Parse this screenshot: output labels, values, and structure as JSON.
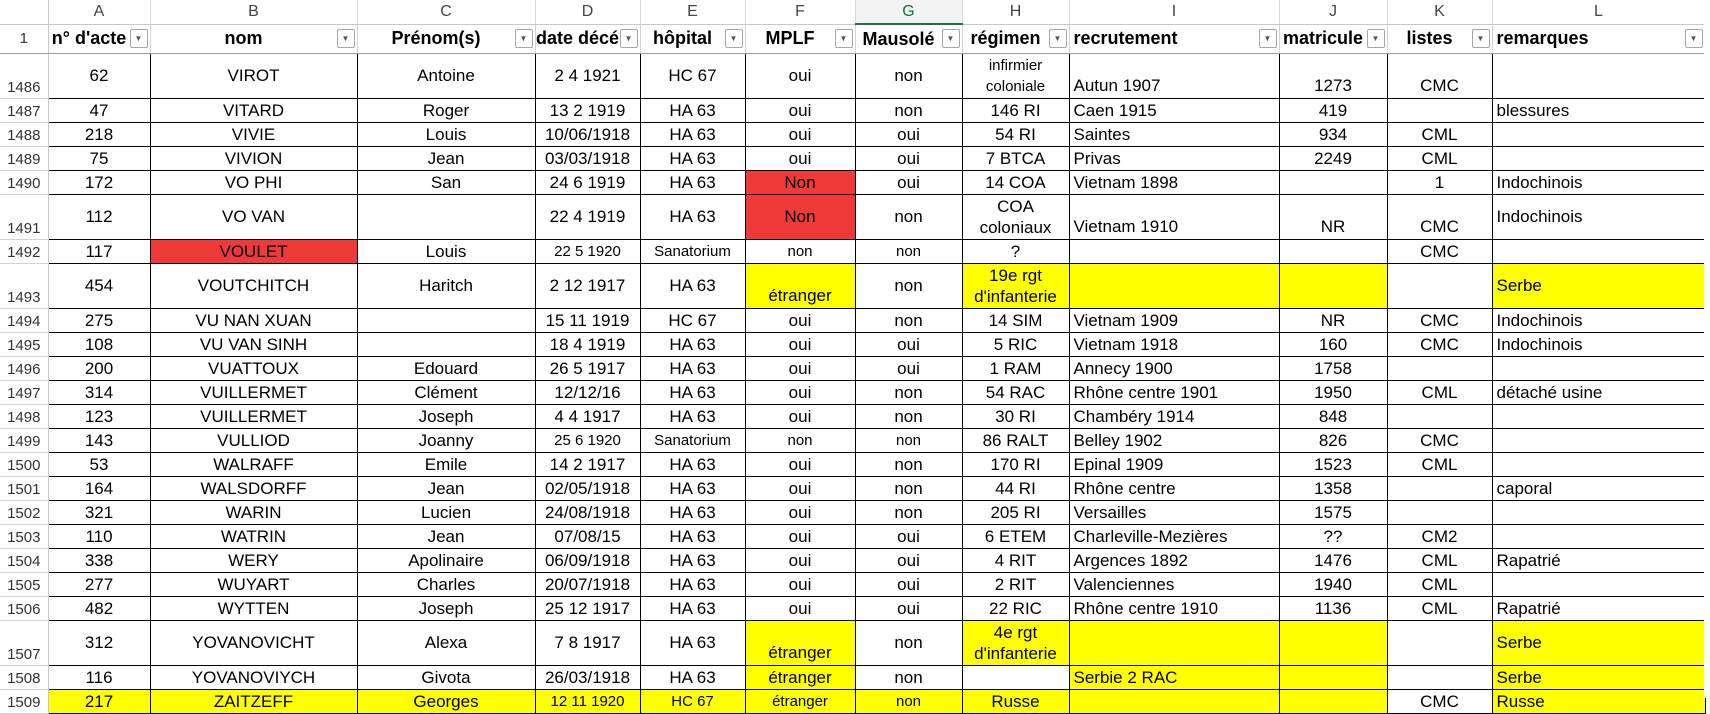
{
  "columns": [
    "A",
    "B",
    "C",
    "D",
    "E",
    "F",
    "G",
    "H",
    "I",
    "J",
    "K",
    "L"
  ],
  "selected_column": "G",
  "header_row": {
    "row": "1",
    "cells": [
      "n° d'acte",
      "nom",
      "Prénom(s)",
      "date décé",
      "hôpital",
      "MPLF",
      "Mausolé",
      "régimen",
      "recrutement",
      "matricule",
      "listes",
      "remarques"
    ]
  },
  "rows": [
    {
      "n": "1486",
      "cells": [
        "62",
        "VIROT",
        "Antoine",
        "2 4 1921",
        "HC 67",
        "oui",
        "non",
        "infirmier coloniale",
        "Autun 1907",
        "1273",
        "CMC",
        ""
      ]
    },
    {
      "n": "1487",
      "cells": [
        "47",
        "VITARD",
        "Roger",
        "13 2 1919",
        "HA 63",
        "oui",
        "non",
        "146 RI",
        "Caen  1915",
        "419",
        "",
        "blessures"
      ]
    },
    {
      "n": "1488",
      "cells": [
        "218",
        "VIVIE",
        "Louis",
        "10/06/1918",
        "HA 63",
        "oui",
        "oui",
        "54 RI",
        "Saintes",
        "934",
        "CML",
        ""
      ]
    },
    {
      "n": "1489",
      "cells": [
        "75",
        "VIVION",
        "Jean",
        "03/03/1918",
        "HA 63",
        "oui",
        "oui",
        "7 BTCA",
        "Privas",
        "2249",
        "CML",
        ""
      ]
    },
    {
      "n": "1490",
      "cells": [
        "172",
        "VO PHI",
        "San",
        "24 6 1919",
        "HA 63",
        "Non",
        "oui",
        "14 COA",
        "Vietnam  1898",
        "",
        "1",
        "Indochinois"
      ]
    },
    {
      "n": "1491",
      "cells": [
        "112",
        "VO VAN",
        "",
        "22 4 1919",
        "HA 63",
        "Non",
        "non",
        "COA coloniaux",
        "Vietnam  1910",
        "NR",
        "CMC",
        "Indochinois"
      ]
    },
    {
      "n": "1492",
      "cells": [
        "117",
        "VOULET",
        "Louis",
        "22 5 1920",
        "Sanatorium",
        "non",
        "non",
        "?",
        "",
        "",
        "CMC",
        ""
      ]
    },
    {
      "n": "1493",
      "cells": [
        "454",
        "VOUTCHITCH",
        "Haritch",
        "2 12 1917",
        "HA 63",
        "étranger",
        "non",
        "19e rgt d'infanterie",
        "",
        "",
        "",
        "Serbe"
      ]
    },
    {
      "n": "1494",
      "cells": [
        "275",
        "VU NAN XUAN",
        "",
        "15 11 1919",
        "HC 67",
        "oui",
        "non",
        "14 SIM",
        "Vietnam  1909",
        "NR",
        "CMC",
        "Indochinois"
      ]
    },
    {
      "n": "1495",
      "cells": [
        "108",
        "VU VAN SINH",
        "",
        "18 4 1919",
        "HA 63",
        "oui",
        "oui",
        "5 RIC",
        "Vietnam  1918",
        "160",
        "CMC",
        "Indochinois"
      ]
    },
    {
      "n": "1496",
      "cells": [
        "200",
        "VUATTOUX",
        "Edouard",
        "26 5 1917",
        "HA 63",
        "oui",
        "oui",
        "1 RAM",
        "Annecy  1900",
        "1758",
        "",
        ""
      ]
    },
    {
      "n": "1497",
      "cells": [
        "314",
        "VUILLERMET",
        "Clément",
        "12/12/16",
        "HA 63",
        "oui",
        "non",
        "54 RAC",
        "Rhône centre  1901",
        "1950",
        "CML",
        "détaché usine"
      ]
    },
    {
      "n": "1498",
      "cells": [
        "123",
        "VUILLERMET",
        "Joseph",
        "4 4 1917",
        "HA 63",
        "oui",
        "non",
        "30 RI",
        "Chambéry  1914",
        "848",
        "",
        ""
      ]
    },
    {
      "n": "1499",
      "cells": [
        "143",
        "VULLIOD",
        "Joanny",
        "25 6 1920",
        "Sanatorium",
        "non",
        "non",
        "86  RALT",
        "Belley  1902",
        "826",
        "CMC",
        ""
      ]
    },
    {
      "n": "1500",
      "cells": [
        "53",
        "WALRAFF",
        "Emile",
        "14 2 1917",
        "HA 63",
        "oui",
        "non",
        "170 RI",
        "Epinal  1909",
        "1523",
        "CML",
        ""
      ]
    },
    {
      "n": "1501",
      "cells": [
        "164",
        "WALSDORFF",
        "Jean",
        "02/05/1918",
        "HA 63",
        "oui",
        "non",
        "44 RI",
        "Rhône centre",
        "1358",
        "",
        "caporal"
      ]
    },
    {
      "n": "1502",
      "cells": [
        "321",
        "WARIN",
        "Lucien",
        "24/08/1918",
        "HA 63",
        "oui",
        "non",
        "205 RI",
        "Versailles",
        "1575",
        "",
        ""
      ]
    },
    {
      "n": "1503",
      "cells": [
        "110",
        "WATRIN",
        "Jean",
        "07/08/15",
        "HA 63",
        "oui",
        "oui",
        "6 ETEM",
        "Charleville-Mezières",
        "??",
        "CM2",
        ""
      ]
    },
    {
      "n": "1504",
      "cells": [
        "338",
        "WERY",
        "Apolinaire",
        "06/09/1918",
        "HA 63",
        "oui",
        "oui",
        "4 RIT",
        "Argences 1892",
        "1476",
        "CML",
        "Rapatrié"
      ]
    },
    {
      "n": "1505",
      "cells": [
        "277",
        "WUYART",
        "Charles",
        "20/07/1918",
        "HA 63",
        "oui",
        "oui",
        "2 RIT",
        "Valenciennes",
        "1940",
        "CML",
        ""
      ]
    },
    {
      "n": "1506",
      "cells": [
        "482",
        "WYTTEN",
        "Joseph",
        "25 12 1917",
        "HA 63",
        "oui",
        "oui",
        "22 RIC",
        "Rhône centre 1910",
        "1136",
        "CML",
        "Rapatrié"
      ]
    },
    {
      "n": "1507",
      "cells": [
        "312",
        "YOVANOVICHT",
        "Alexa",
        "7 8 1917",
        "HA 63",
        "étranger",
        "non",
        "4e rgt d'infanterie",
        "",
        "",
        "",
        "Serbe"
      ]
    },
    {
      "n": "1508",
      "cells": [
        "116",
        "YOVANOVIYCH",
        "Givota",
        "26/03/1918",
        "HA 63",
        "étranger",
        "non",
        "",
        "Serbie 2 RAC",
        "",
        "",
        "Serbe"
      ]
    },
    {
      "n": "1509",
      "cells": [
        "217",
        "ZAITZEFF",
        "Georges",
        "12 11 1920",
        "HC 67",
        "étranger",
        "non",
        "Russe",
        "",
        "",
        "CMC",
        "Russe"
      ]
    }
  ],
  "styles": {
    "red": "#f03a3a",
    "yellow": "#ffff00",
    "selected_col_text": "#1d6b3a"
  },
  "icons": {
    "filter": "filter-dropdown-icon"
  }
}
